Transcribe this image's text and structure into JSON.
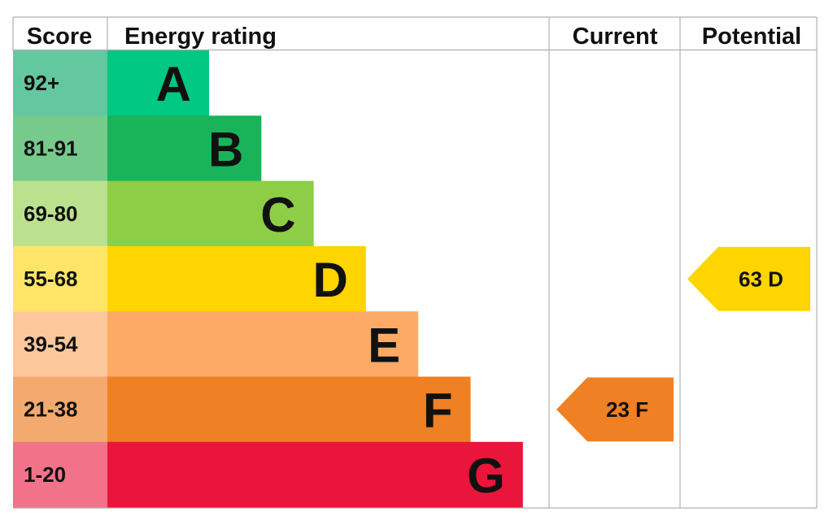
{
  "chart_data": {
    "type": "bar",
    "headers": {
      "score": "Score",
      "energy_rating": "Energy rating",
      "current": "Current",
      "potential": "Potential"
    },
    "bands": [
      {
        "letter": "A",
        "range": "92+",
        "color": "#00c781",
        "score_color": "#63c8a0"
      },
      {
        "letter": "B",
        "range": "81-91",
        "color": "#19b459",
        "score_color": "#75ca8c"
      },
      {
        "letter": "C",
        "range": "69-80",
        "color": "#8dce46",
        "score_color": "#bbe18f"
      },
      {
        "letter": "D",
        "range": "55-68",
        "color": "#ffd500",
        "score_color": "#ffe567"
      },
      {
        "letter": "E",
        "range": "39-54",
        "color": "#fcaa65",
        "score_color": "#fdc79c"
      },
      {
        "letter": "F",
        "range": "21-38",
        "color": "#ef8023",
        "score_color": "#f4aa6f"
      },
      {
        "letter": "G",
        "range": "1-20",
        "color": "#e9153b",
        "score_color": "#f17289"
      }
    ],
    "current": {
      "score": 23,
      "band": "F",
      "label": "23  F",
      "color": "#ef8023"
    },
    "potential": {
      "score": 63,
      "band": "D",
      "label": "63  D",
      "color": "#ffd500"
    }
  },
  "colors": {
    "grid_line": "#b0b0b0",
    "text": "#111111",
    "tag_text": "#111111"
  }
}
